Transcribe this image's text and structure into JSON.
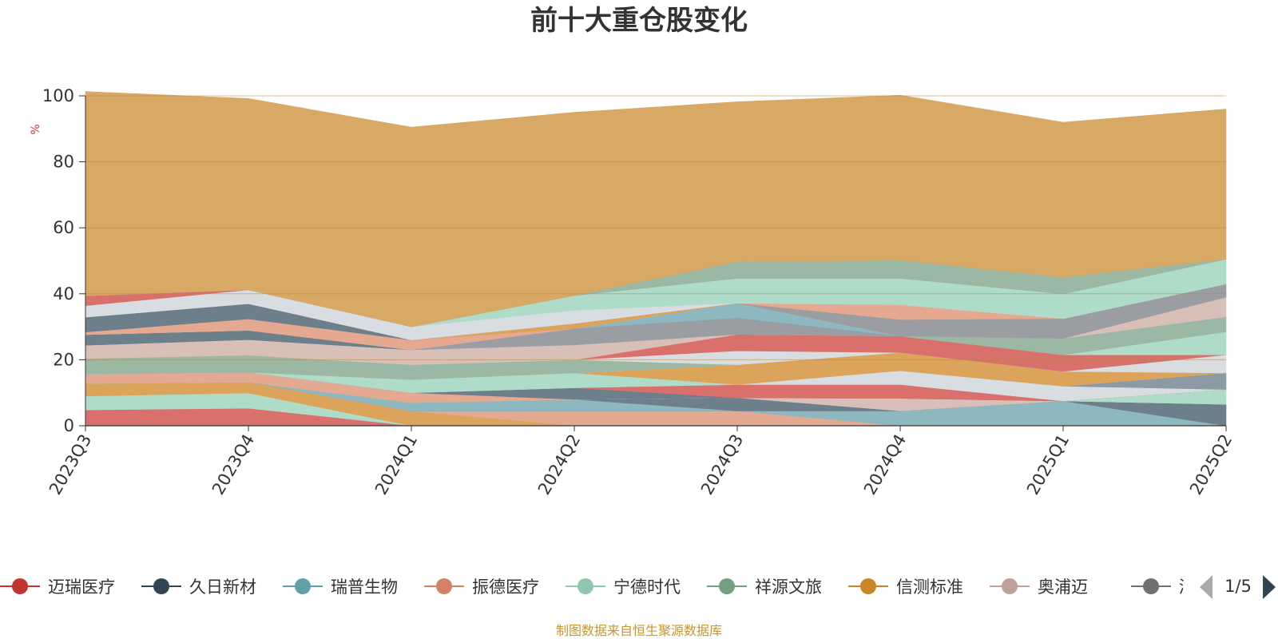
{
  "chart_data": {
    "type": "area",
    "title": "前十大重仓股变化",
    "ylabel": "%",
    "ylim": [
      0,
      100
    ],
    "yticks": [
      0,
      20,
      40,
      60,
      80,
      100
    ],
    "categories": [
      "2023Q3",
      "2023Q4",
      "2024Q1",
      "2024Q2",
      "2024Q3",
      "2024Q4",
      "2025Q1",
      "2025Q2"
    ],
    "series": [
      {
        "name": "迈瑞医疗",
        "color": "#d9706c",
        "values": [
          4.8,
          5.3,
          0,
          0,
          0,
          0,
          0,
          0
        ]
      },
      {
        "name": "",
        "color": "#aedcc9",
        "values": [
          4.2,
          4.6,
          0,
          0,
          0,
          0,
          0,
          0
        ]
      },
      {
        "name": "信测标准",
        "color": "#dca35a",
        "values": [
          3.8,
          3.3,
          4.5,
          0,
          0,
          0,
          0,
          0
        ]
      },
      {
        "name": "",
        "color": "#e5a890",
        "values": [
          0,
          0,
          0,
          4.5,
          4.5,
          0,
          0,
          0
        ]
      },
      {
        "name": "瑞普生物",
        "color": "#8db8bf",
        "values": [
          0,
          0,
          0,
          0,
          0,
          4.5,
          7.5,
          0
        ]
      },
      {
        "name": "久日新材",
        "color": "#6e7f8c",
        "values": [
          0,
          0,
          0,
          0,
          0,
          0,
          0,
          6.5
        ]
      },
      {
        "name": "",
        "color": "#8db8bf",
        "values": [
          0,
          0,
          2.5,
          3.5,
          0,
          0,
          0,
          0
        ]
      },
      {
        "name": "",
        "color": "#6e7f8c",
        "values": [
          0,
          0,
          0,
          0,
          4.0,
          0,
          0,
          0
        ]
      },
      {
        "name": "奥浦迈",
        "color": "#d8bfb8",
        "values": [
          0,
          0,
          0,
          0,
          0,
          3.8,
          0,
          0
        ]
      },
      {
        "name": "",
        "color": "#aedcc9",
        "values": [
          0,
          0,
          0,
          0,
          0,
          0,
          0,
          4.5
        ]
      },
      {
        "name": "振德医疗",
        "color": "#e5a890",
        "values": [
          2.8,
          3.0,
          3.0,
          0,
          0,
          0,
          0,
          0
        ]
      },
      {
        "name": "",
        "color": "#6e7f8c",
        "values": [
          0,
          0,
          0,
          3.5,
          0,
          0,
          0,
          0
        ]
      },
      {
        "name": "",
        "color": "#d9706c",
        "values": [
          0,
          0,
          0,
          0,
          4.0,
          4.2,
          0,
          0
        ]
      },
      {
        "name": "",
        "color": "#d8dde2",
        "values": [
          0,
          0,
          0,
          0,
          0,
          4.2,
          4.5,
          0
        ]
      },
      {
        "name": "",
        "color": "#8c9aa3",
        "values": [
          0,
          0,
          0,
          0,
          0,
          0,
          0,
          5.0
        ]
      },
      {
        "name": "宁德时代",
        "color": "#aedcc9",
        "values": [
          0,
          0,
          4.0,
          4.5,
          0,
          0,
          0,
          0
        ]
      },
      {
        "name": "",
        "color": "#dca35a",
        "values": [
          0,
          0,
          0,
          0,
          6.0,
          5.5,
          4.5,
          0
        ]
      },
      {
        "name": "",
        "color": "#d8dde2",
        "values": [
          0,
          0,
          0,
          0,
          0,
          0,
          0,
          5.5
        ]
      },
      {
        "name": "祥源文旅",
        "color": "#9bb8a5",
        "values": [
          4.8,
          5.2,
          4.5,
          4.0,
          0,
          0,
          0,
          0
        ]
      },
      {
        "name": "",
        "color": "#d8dde2",
        "values": [
          0,
          0,
          0,
          0,
          4.2,
          0,
          0,
          0
        ]
      },
      {
        "name": "",
        "color": "#d9706c",
        "values": [
          0,
          0,
          0,
          0,
          5.0,
          5.0,
          5.0,
          0
        ]
      },
      {
        "name": "",
        "color": "#aedcc9",
        "values": [
          0,
          0,
          0,
          0,
          0,
          0,
          0,
          7.0
        ]
      },
      {
        "name": "奥浦迈",
        "color": "#d8bfb8",
        "values": [
          4.0,
          4.7,
          4.5,
          4.5,
          0,
          0,
          0,
          0
        ]
      },
      {
        "name": "",
        "color": "#9a9ea3",
        "values": [
          0,
          0,
          0,
          5.0,
          5.0,
          0,
          0,
          0
        ]
      },
      {
        "name": "",
        "color": "#9bb8a5",
        "values": [
          0,
          0,
          0,
          0,
          0,
          0,
          5.0,
          4.5
        ]
      },
      {
        "name": "润",
        "color": "#6e7f8c",
        "values": [
          3.2,
          2.8,
          0,
          0,
          0,
          0,
          0,
          0
        ]
      },
      {
        "name": "",
        "color": "#8db8bf",
        "values": [
          0,
          0,
          0,
          0,
          4.5,
          0,
          0,
          0
        ]
      },
      {
        "name": "",
        "color": "#d8bfb8",
        "values": [
          0,
          0,
          0,
          0,
          0,
          0,
          0,
          6.0
        ]
      },
      {
        "name": "",
        "color": "#e5a890",
        "values": [
          0.8,
          3.5,
          3.0,
          0,
          0,
          0,
          0,
          0
        ]
      },
      {
        "name": "",
        "color": "#dca35a",
        "values": [
          0,
          0,
          0,
          1.5,
          0,
          0,
          0,
          0
        ]
      },
      {
        "name": "",
        "color": "#9a9ea3",
        "values": [
          0,
          0,
          0,
          0,
          0,
          5.0,
          6.0,
          4.0
        ]
      },
      {
        "name": "",
        "color": "#6e7f8c",
        "values": [
          4.5,
          4.6,
          0,
          0,
          0,
          0,
          0,
          0
        ]
      },
      {
        "name": "",
        "color": "#dca35a",
        "values": [
          0,
          0,
          0,
          0,
          0,
          0,
          0,
          0
        ]
      },
      {
        "name": "",
        "color": "#e5a890",
        "values": [
          0,
          0,
          0,
          0,
          0,
          4.5,
          0,
          0
        ]
      },
      {
        "name": "",
        "color": "#d8dde2",
        "values": [
          3.5,
          4.2,
          4.0,
          4.0,
          0,
          0,
          0,
          0
        ]
      },
      {
        "name": "",
        "color": "#aedcc9",
        "values": [
          0,
          0,
          0,
          4.5,
          7.5,
          8.0,
          7.5,
          7.5
        ]
      },
      {
        "name": "",
        "color": "#d9706c",
        "values": [
          3.0,
          0,
          0,
          0,
          0,
          0,
          0,
          0
        ]
      },
      {
        "name": "",
        "color": "#9bb8a5",
        "values": [
          0,
          0,
          0,
          0,
          5.0,
          5.5,
          5.0,
          0
        ]
      },
      {
        "name": "信测标准",
        "color": "#d8a865",
        "values": [
          61.9,
          58.0,
          60.5,
          55.5,
          48.5,
          50.0,
          47.0,
          45.5
        ]
      }
    ],
    "legend": {
      "placement": "bottom",
      "items": [
        {
          "name": "迈瑞医疗",
          "color": "#c23531"
        },
        {
          "name": "久日新材",
          "color": "#2f4554"
        },
        {
          "name": "瑞普生物",
          "color": "#61a0a8"
        },
        {
          "name": "振德医疗",
          "color": "#d48265"
        },
        {
          "name": "宁德时代",
          "color": "#91c7ae"
        },
        {
          "name": "祥源文旅",
          "color": "#749f83"
        },
        {
          "name": "信测标准",
          "color": "#ca8622"
        },
        {
          "name": "奥浦迈",
          "color": "#bda29a"
        },
        {
          "name": "润",
          "color": "#6e7074"
        }
      ],
      "page": "1/5"
    },
    "grid": true
  },
  "source_note": "制图数据来自恒生聚源数据库"
}
